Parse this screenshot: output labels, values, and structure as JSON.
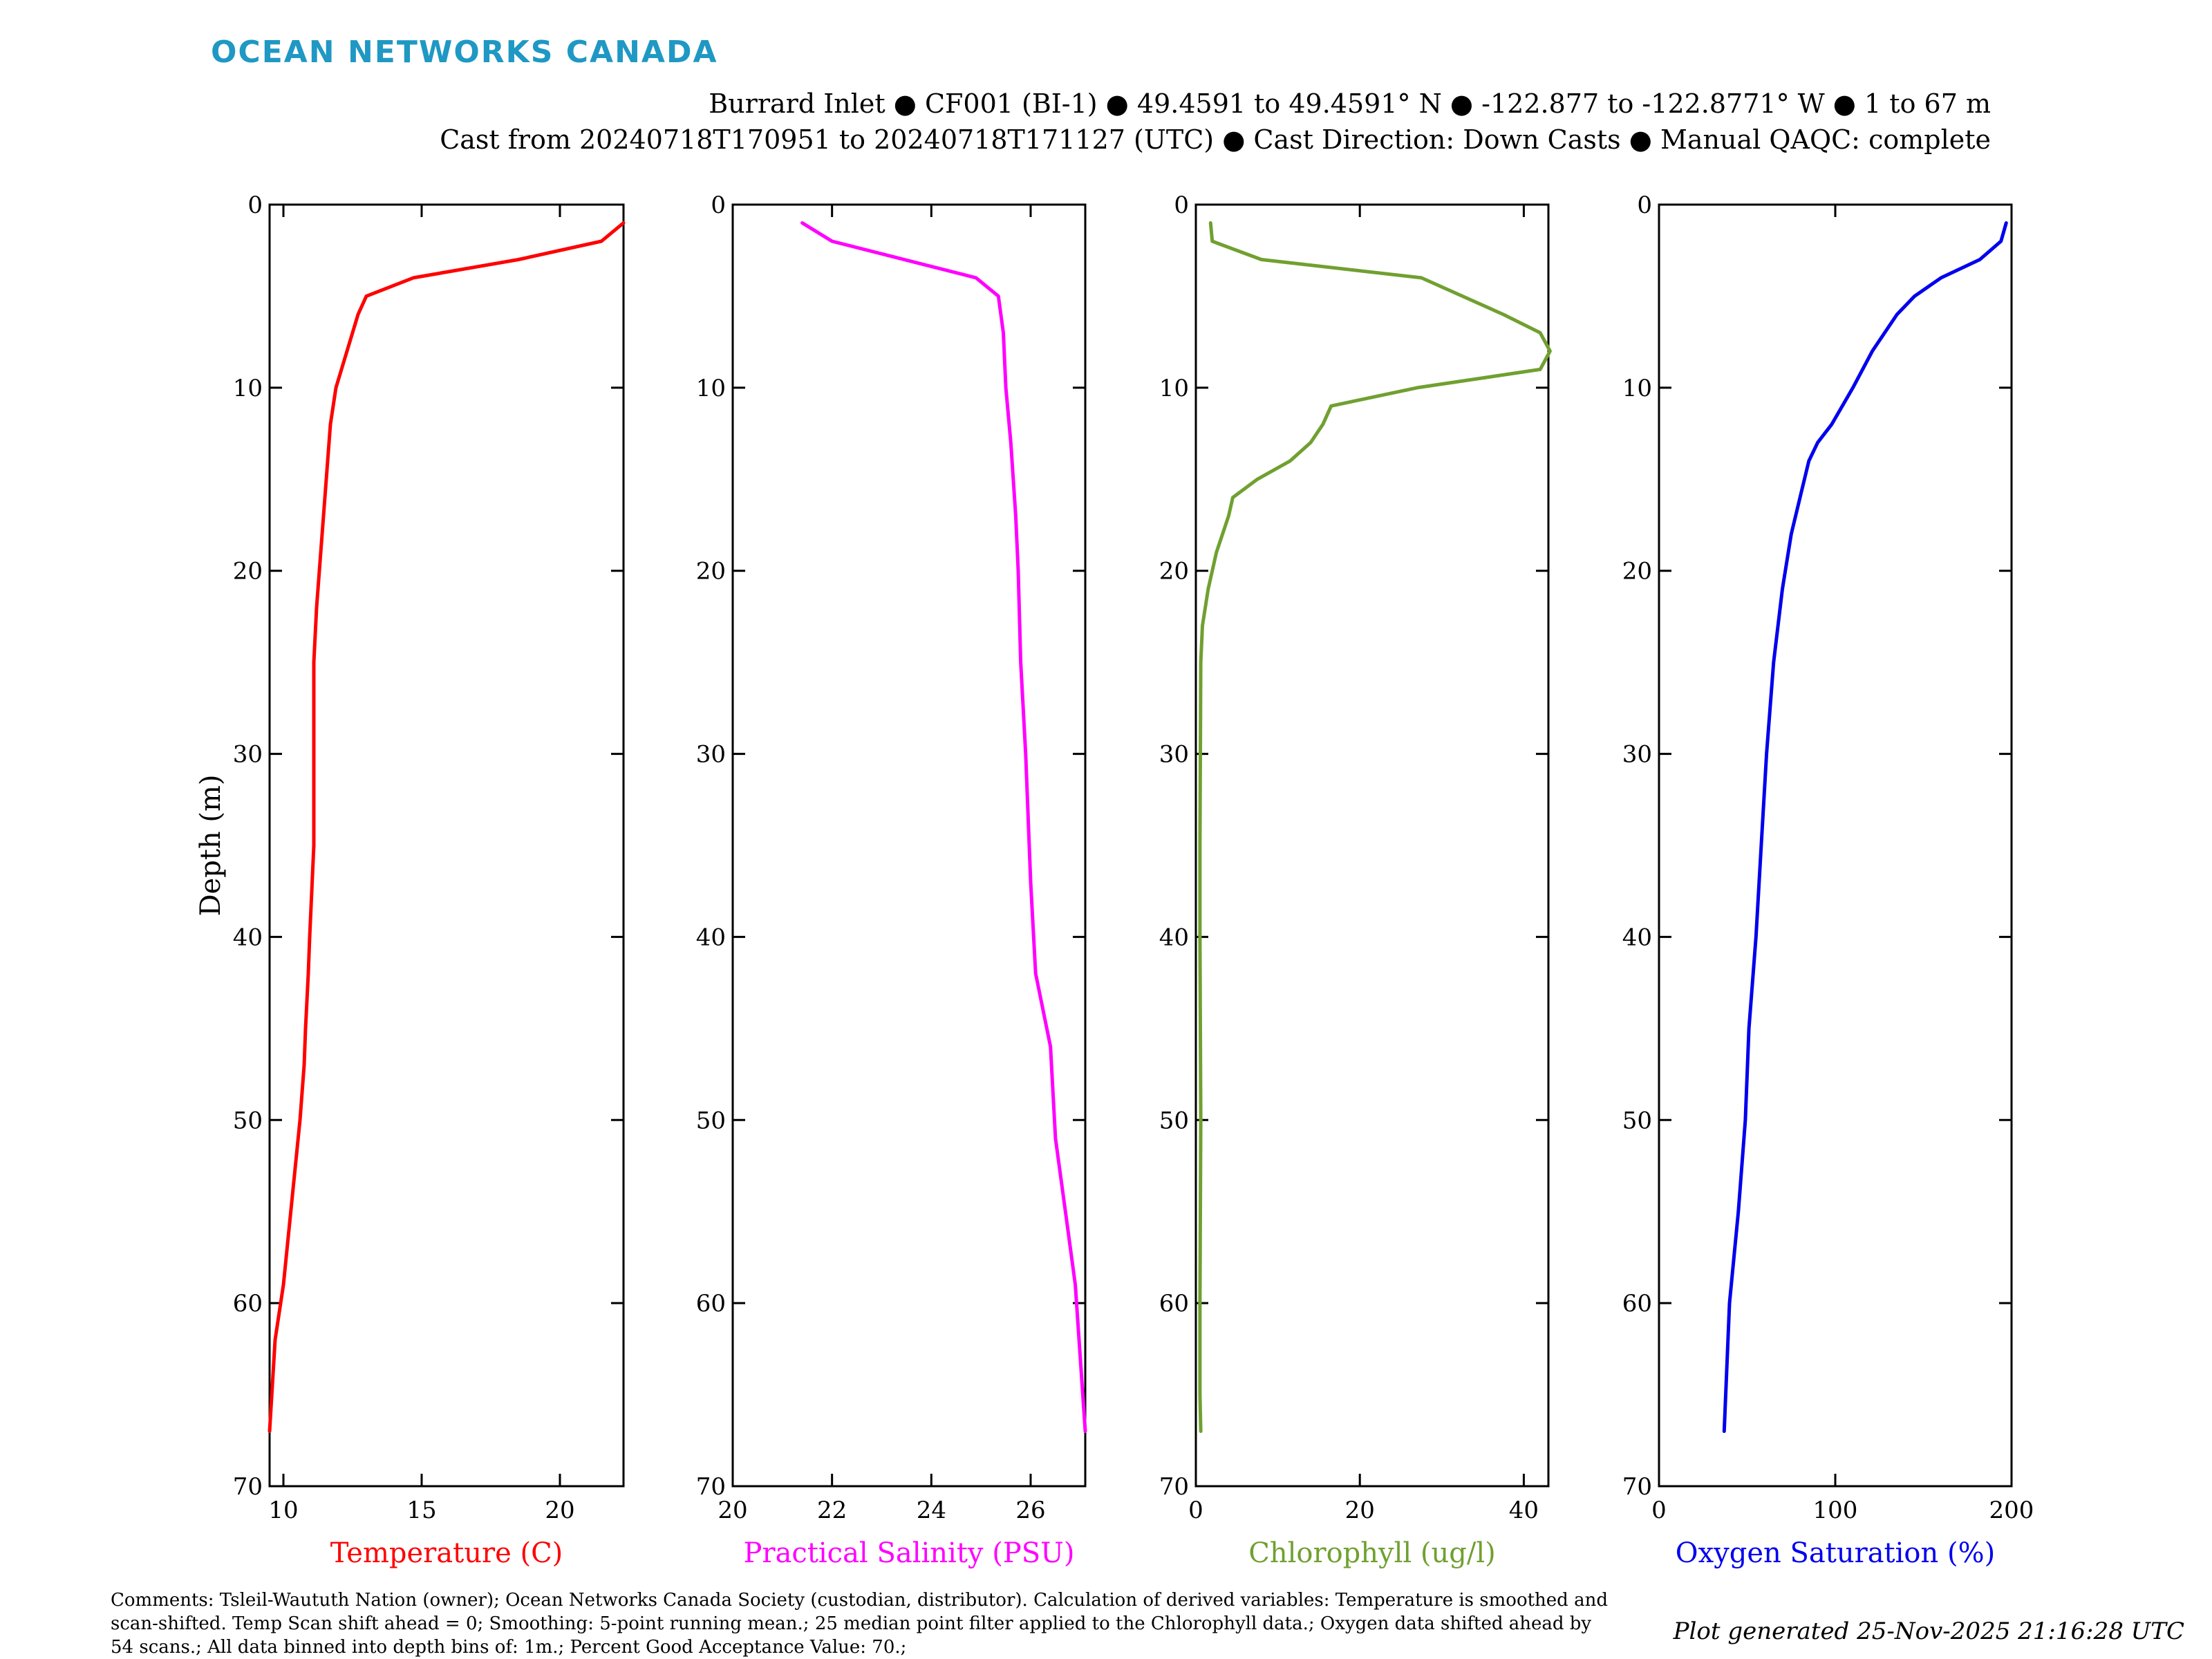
{
  "logo_text": "OCEAN NETWORKS CANADA",
  "header": {
    "line1": "Burrard Inlet ● CF001 (BI-1) ● 49.4591 to 49.4591° N ● -122.877 to -122.8771° W ● 1 to 67 m",
    "line2": "Cast from 20240718T170951 to 20240718T171127 (UTC) ● Cast Direction: Down Casts ● Manual QAQC: complete"
  },
  "footer": {
    "comments": "Comments: Tsleil-Waututh Nation (owner); Ocean Networks Canada Society (custodian, distributor). Calculation of derived variables: Temperature is smoothed and scan-shifted. Temp Scan shift ahead = 0; Smoothing: 5-point running mean.; 25 median point filter applied to the Chlorophyll data.; Oxygen data shifted ahead by 54 scans.; All data binned into depth bins of: 1m.; Percent Good Acceptance Value: 70.;",
    "generated": "Plot generated 25-Nov-2025 21:16:28 UTC"
  },
  "chart_data": [
    {
      "type": "line",
      "xlabel": "Temperature (C)",
      "ylabel": "Depth (m)",
      "color": "#ff0000",
      "xlim": [
        9.5,
        22.3
      ],
      "ylim": [
        70,
        0
      ],
      "y_reversed": true,
      "xticks": [
        10,
        15,
        20
      ],
      "yticks": [
        0,
        10,
        20,
        30,
        40,
        50,
        60,
        70
      ],
      "series": [
        {
          "x": [
            22.3,
            21.5,
            18.5,
            14.7,
            13.0,
            12.7,
            12.5,
            12.3,
            11.9,
            11.7,
            11.6,
            11.5,
            11.4,
            11.2,
            11.1,
            11.1,
            10.95,
            10.9,
            10.8,
            10.75,
            10.6,
            10.4,
            10.2,
            10.0,
            9.7,
            9.5
          ],
          "y": [
            1,
            2,
            3,
            4,
            5,
            6,
            7,
            8,
            10,
            12,
            14,
            16,
            18,
            22,
            25,
            35,
            40,
            42,
            45,
            47,
            50,
            53,
            56,
            59,
            62,
            67
          ]
        }
      ]
    },
    {
      "type": "line",
      "xlabel": "Practical Salinity (PSU)",
      "color": "#ff00ff",
      "xlim": [
        20,
        27.1
      ],
      "ylim": [
        70,
        0
      ],
      "y_reversed": true,
      "xticks": [
        20,
        22,
        24,
        26
      ],
      "yticks": [
        0,
        10,
        20,
        30,
        40,
        50,
        60,
        70
      ],
      "series": [
        {
          "x": [
            21.4,
            22.0,
            24.9,
            25.35,
            25.45,
            25.5,
            25.6,
            25.7,
            25.75,
            25.8,
            25.9,
            26.0,
            26.1,
            26.4,
            26.5,
            26.7,
            26.9,
            27.0,
            27.1
          ],
          "y": [
            1,
            2,
            4,
            5,
            7,
            10,
            13,
            17,
            20,
            25,
            30,
            37,
            42,
            46,
            51,
            55,
            59,
            63,
            67
          ]
        }
      ]
    },
    {
      "type": "line",
      "xlabel": "Chlorophyll (ug/l)",
      "color": "#70a030",
      "xlim": [
        0,
        43
      ],
      "ylim": [
        70,
        0
      ],
      "y_reversed": true,
      "xticks": [
        0,
        20,
        40
      ],
      "yticks": [
        0,
        10,
        20,
        30,
        40,
        50,
        60,
        70
      ],
      "series": [
        {
          "x": [
            1.8,
            2.0,
            8.0,
            27.5,
            37.5,
            42.0,
            43.2,
            42.0,
            27.0,
            16.5,
            15.5,
            14.0,
            11.5,
            7.5,
            4.5,
            4.0,
            2.5,
            1.5,
            0.8,
            0.6,
            0.5,
            0.5,
            0.6,
            0.5,
            0.5,
            0.6
          ],
          "y": [
            1,
            2,
            3,
            4,
            6,
            7,
            8,
            9,
            10,
            11,
            12,
            13,
            14,
            15,
            16,
            17,
            19,
            21,
            23,
            25,
            35,
            40,
            50,
            60,
            65,
            67
          ]
        }
      ]
    },
    {
      "type": "line",
      "xlabel": "Oxygen Saturation (%)",
      "color": "#0000ee",
      "xlim": [
        0,
        200
      ],
      "ylim": [
        70,
        0
      ],
      "y_reversed": true,
      "xticks": [
        0,
        100,
        200
      ],
      "yticks": [
        0,
        10,
        20,
        30,
        40,
        50,
        60,
        70
      ],
      "series": [
        {
          "x": [
            197,
            194,
            182,
            160,
            145,
            135,
            121,
            110,
            98,
            90,
            85,
            80,
            75,
            70,
            65,
            61,
            58,
            55,
            51,
            49,
            45,
            40,
            37
          ],
          "y": [
            1,
            2,
            3,
            4,
            5,
            6,
            8,
            10,
            12,
            13,
            14,
            16,
            18,
            21,
            25,
            30,
            35,
            40,
            45,
            50,
            55,
            60,
            67
          ]
        }
      ]
    }
  ]
}
